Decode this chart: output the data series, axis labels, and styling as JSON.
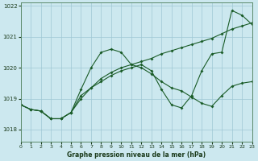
{
  "title": "Graphe pression niveau de la mer (hPa)",
  "bg_color": "#cce8ef",
  "grid_color": "#9fc8d4",
  "line_color": "#1a5c28",
  "xlim": [
    0,
    23
  ],
  "ylim": [
    1017.6,
    1022.1
  ],
  "yticks": [
    1018,
    1019,
    1020,
    1021,
    1022
  ],
  "xticks": [
    0,
    1,
    2,
    3,
    4,
    5,
    6,
    7,
    8,
    9,
    10,
    11,
    12,
    13,
    14,
    15,
    16,
    17,
    18,
    19,
    20,
    21,
    22,
    23
  ],
  "series": [
    [
      1018.8,
      1018.65,
      1018.6,
      1018.35,
      1018.35,
      1018.55,
      1019.0,
      1019.35,
      1019.65,
      1019.85,
      1020.0,
      1020.1,
      1020.2,
      1020.3,
      1020.45,
      1020.55,
      1020.65,
      1020.75,
      1020.85,
      1020.95,
      1021.1,
      1021.25,
      1021.35,
      1021.45
    ],
    [
      1018.8,
      1018.65,
      1018.6,
      1018.35,
      1018.35,
      1018.55,
      1019.3,
      1020.0,
      1020.5,
      1020.6,
      1020.5,
      1020.1,
      1020.0,
      1019.8,
      1019.55,
      1019.35,
      1019.25,
      1019.05,
      1018.85,
      1018.75,
      1019.1,
      1019.4,
      1019.5,
      1019.55
    ],
    [
      1018.8,
      1018.65,
      1018.6,
      1018.35,
      1018.35,
      1018.55,
      1019.1,
      1019.35,
      1019.55,
      1019.75,
      1019.9,
      1020.0,
      1020.1,
      1019.9,
      1019.3,
      1018.8,
      1018.7,
      1019.1,
      1019.9,
      1020.45,
      1020.5,
      1021.85,
      1021.7,
      1021.4
    ]
  ]
}
